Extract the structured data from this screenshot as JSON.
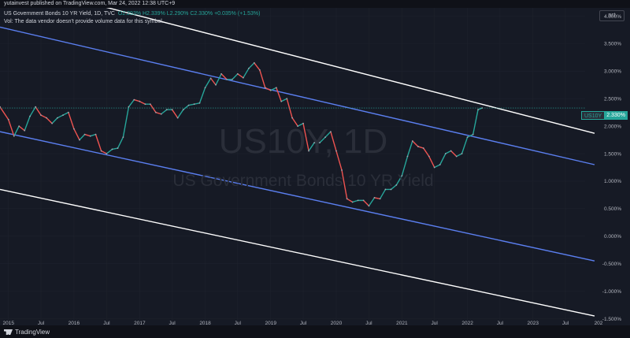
{
  "publisher_line": "yutainvest published on TradingView.com, Mar 24, 2022 12:38 UTC+9",
  "header": {
    "symbol_line": "US Government Bonds 10 YR Yield, 1D, TVC",
    "ohlc": "O2.293% H2.339% L2.290% C2.330% +0.035% (+1.53%)",
    "volume_note": "Vol: The data vendor doesn't provide volume data for this symbol."
  },
  "price_scale_unit": "pct",
  "watermark": {
    "symbol": "US10Y, 1D",
    "description": "US Government Bonds 10 YR Yield"
  },
  "last_price_tag": {
    "symbol": "US10Y",
    "value": "2.330%"
  },
  "footer_logo": "TradingView",
  "colors": {
    "background": "#161a25",
    "up": "#26a69a",
    "down": "#ef5350",
    "channel_outer": "#ffffff",
    "channel_inner": "#5b7ff0"
  },
  "chart_data": {
    "type": "line",
    "title": "US Government Bonds 10 YR Yield, 1D, TVC",
    "ylabel": "pct",
    "ylim": [
      -1.55,
      4.15
    ],
    "xlim": [
      "2014-11-15",
      "2024-01-01"
    ],
    "y_ticks": [
      "4.000%",
      "3.500%",
      "3.000%",
      "2.500%",
      "2.000%",
      "1.500%",
      "1.000%",
      "0.500%",
      "0.000%",
      "-0.500%",
      "-1.000%",
      "-1.500%"
    ],
    "y_tick_values": [
      4.0,
      3.5,
      3.0,
      2.5,
      2.0,
      1.5,
      1.0,
      0.5,
      0.0,
      -0.5,
      -1.0,
      -1.5
    ],
    "x_ticks": [
      {
        "label": "2015",
        "date": "2015-01-01"
      },
      {
        "label": "Jul",
        "date": "2015-07-01"
      },
      {
        "label": "2016",
        "date": "2016-01-01"
      },
      {
        "label": "Jul",
        "date": "2016-07-01"
      },
      {
        "label": "2017",
        "date": "2017-01-01"
      },
      {
        "label": "Jul",
        "date": "2017-07-01"
      },
      {
        "label": "2018",
        "date": "2018-01-01"
      },
      {
        "label": "Jul",
        "date": "2018-07-01"
      },
      {
        "label": "2019",
        "date": "2019-01-01"
      },
      {
        "label": "Jul",
        "date": "2019-07-01"
      },
      {
        "label": "2020",
        "date": "2020-01-01"
      },
      {
        "label": "Jul",
        "date": "2020-07-01"
      },
      {
        "label": "2021",
        "date": "2021-01-01"
      },
      {
        "label": "Jul",
        "date": "2021-07-01"
      },
      {
        "label": "2022",
        "date": "2022-01-01"
      },
      {
        "label": "Jul",
        "date": "2022-07-01"
      },
      {
        "label": "2023",
        "date": "2023-01-01"
      },
      {
        "label": "Jul",
        "date": "2023-07-01"
      },
      {
        "label": "202",
        "date": "2024-01-01"
      }
    ],
    "series": [
      {
        "name": "US10Y",
        "x": [
          "2014-11-15",
          "2015-01-01",
          "2015-02-01",
          "2015-03-01",
          "2015-04-01",
          "2015-05-01",
          "2015-06-01",
          "2015-07-01",
          "2015-08-01",
          "2015-09-01",
          "2015-10-01",
          "2015-11-01",
          "2015-12-01",
          "2016-01-01",
          "2016-02-01",
          "2016-03-01",
          "2016-04-01",
          "2016-05-01",
          "2016-06-01",
          "2016-07-01",
          "2016-08-01",
          "2016-09-01",
          "2016-10-01",
          "2016-11-01",
          "2016-12-01",
          "2017-01-01",
          "2017-02-01",
          "2017-03-01",
          "2017-04-01",
          "2017-05-01",
          "2017-06-01",
          "2017-07-01",
          "2017-08-01",
          "2017-09-01",
          "2017-10-01",
          "2017-11-01",
          "2017-12-01",
          "2018-01-01",
          "2018-02-01",
          "2018-03-01",
          "2018-04-01",
          "2018-05-01",
          "2018-06-01",
          "2018-07-01",
          "2018-08-01",
          "2018-09-01",
          "2018-10-01",
          "2018-11-01",
          "2018-12-01",
          "2019-01-01",
          "2019-02-01",
          "2019-03-01",
          "2019-04-01",
          "2019-05-01",
          "2019-06-01",
          "2019-07-01",
          "2019-08-01",
          "2019-09-01",
          "2019-10-01",
          "2019-11-01",
          "2019-12-01",
          "2020-01-01",
          "2020-02-01",
          "2020-03-01",
          "2020-04-01",
          "2020-05-01",
          "2020-06-01",
          "2020-07-01",
          "2020-08-01",
          "2020-09-01",
          "2020-10-01",
          "2020-11-01",
          "2020-12-01",
          "2021-01-01",
          "2021-02-01",
          "2021-03-01",
          "2021-04-01",
          "2021-05-01",
          "2021-06-01",
          "2021-07-01",
          "2021-08-01",
          "2021-09-01",
          "2021-10-01",
          "2021-11-01",
          "2021-12-01",
          "2022-01-01",
          "2022-02-01",
          "2022-03-01",
          "2022-03-24"
        ],
        "values": [
          2.35,
          2.12,
          1.82,
          2.0,
          1.92,
          2.18,
          2.35,
          2.2,
          2.15,
          2.05,
          2.15,
          2.2,
          2.25,
          1.95,
          1.75,
          1.85,
          1.82,
          1.85,
          1.55,
          1.5,
          1.58,
          1.6,
          1.8,
          2.35,
          2.48,
          2.45,
          2.4,
          2.4,
          2.25,
          2.22,
          2.3,
          2.3,
          2.15,
          2.3,
          2.38,
          2.4,
          2.42,
          2.7,
          2.87,
          2.75,
          2.95,
          2.85,
          2.85,
          2.95,
          2.88,
          3.05,
          3.15,
          3.02,
          2.7,
          2.65,
          2.7,
          2.45,
          2.5,
          2.15,
          2.0,
          2.05,
          1.55,
          1.7,
          1.7,
          1.8,
          1.9,
          1.55,
          1.2,
          0.68,
          0.62,
          0.65,
          0.65,
          0.55,
          0.7,
          0.68,
          0.85,
          0.85,
          0.93,
          1.1,
          1.45,
          1.73,
          1.63,
          1.6,
          1.45,
          1.25,
          1.3,
          1.5,
          1.55,
          1.45,
          1.5,
          1.8,
          1.85,
          2.3,
          2.33
        ]
      }
    ],
    "channel_lines": [
      {
        "name": "upper-outer",
        "color": "#ffffff",
        "from": {
          "x": "2016-05-12",
          "y": 4.2
        },
        "to": {
          "x": "2023-12-10",
          "y": 1.87
        }
      },
      {
        "name": "upper-inner",
        "color": "#5b7ff0",
        "from": {
          "x": "2014-11-15",
          "y": 3.8
        },
        "to": {
          "x": "2023-12-10",
          "y": 1.3
        }
      },
      {
        "name": "lower-inner",
        "color": "#5b7ff0",
        "from": {
          "x": "2014-11-15",
          "y": 1.9
        },
        "to": {
          "x": "2023-12-10",
          "y": -0.45
        }
      },
      {
        "name": "lower-outer",
        "color": "#ffffff",
        "from": {
          "x": "2014-11-15",
          "y": 0.85
        },
        "to": {
          "x": "2023-12-10",
          "y": -1.45
        }
      }
    ],
    "last_value": 2.33,
    "grid": true
  }
}
